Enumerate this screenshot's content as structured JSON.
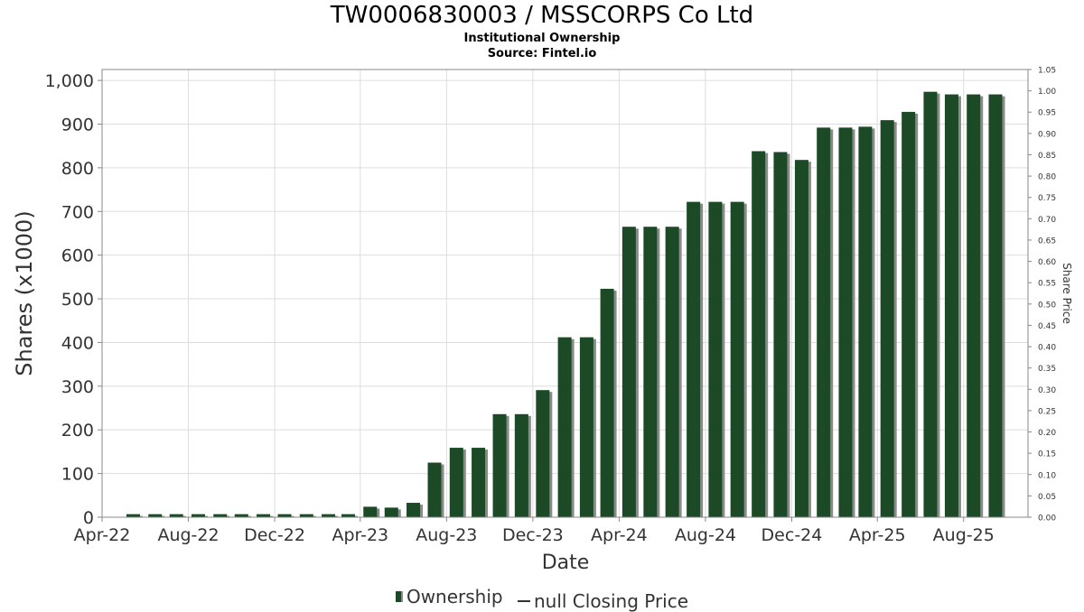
{
  "title": "TW0006830003 / MSSCORPS Co Ltd",
  "subtitle": "Institutional Ownership",
  "source": "Source: Fintel.io",
  "legend": {
    "ownership": "Ownership",
    "price": "null Closing Price"
  },
  "colors": {
    "bar": "#1c4a26",
    "bar_shadow": "#8a8a8a",
    "grid": "#dddddd"
  },
  "chart_data": {
    "type": "bar",
    "title": "TW0006830003 / MSSCORPS Co Ltd",
    "xlabel": "Date",
    "ylabel": "Shares (x1000)",
    "y2label": "Share Price",
    "ylim": [
      0,
      1025
    ],
    "y2lim": [
      0,
      1.05
    ],
    "xlim": [
      "2022-04-01",
      "2025-10-31"
    ],
    "yticks": [
      "0",
      "100",
      "200",
      "300",
      "400",
      "500",
      "600",
      "700",
      "800",
      "900",
      "1,000"
    ],
    "y2ticks": [
      "0.00",
      "0.05",
      "0.10",
      "0.15",
      "0.20",
      "0.25",
      "0.30",
      "0.35",
      "0.40",
      "0.45",
      "0.50",
      "0.55",
      "0.60",
      "0.65",
      "0.70",
      "0.75",
      "0.80",
      "0.85",
      "0.90",
      "0.95",
      "1.00",
      "1.05"
    ],
    "xticks": [
      {
        "label": "Apr-22",
        "date": "2022-04-01"
      },
      {
        "label": "Aug-22",
        "date": "2022-08-01"
      },
      {
        "label": "Dec-22",
        "date": "2022-12-01"
      },
      {
        "label": "Apr-23",
        "date": "2023-04-01"
      },
      {
        "label": "Aug-23",
        "date": "2023-08-01"
      },
      {
        "label": "Dec-23",
        "date": "2023-12-01"
      },
      {
        "label": "Apr-24",
        "date": "2024-04-01"
      },
      {
        "label": "Aug-24",
        "date": "2024-08-01"
      },
      {
        "label": "Dec-24",
        "date": "2024-12-01"
      },
      {
        "label": "Apr-25",
        "date": "2025-04-01"
      },
      {
        "label": "Aug-25",
        "date": "2025-08-01"
      }
    ],
    "grid": true,
    "legend_position": "bottom",
    "series": [
      {
        "name": "Ownership",
        "points": [
          {
            "date": "2022-05-15",
            "value": 7
          },
          {
            "date": "2022-06-15",
            "value": 7
          },
          {
            "date": "2022-07-15",
            "value": 7
          },
          {
            "date": "2022-08-15",
            "value": 7
          },
          {
            "date": "2022-09-15",
            "value": 7
          },
          {
            "date": "2022-10-15",
            "value": 7
          },
          {
            "date": "2022-11-15",
            "value": 7
          },
          {
            "date": "2022-12-15",
            "value": 7
          },
          {
            "date": "2023-01-15",
            "value": 7
          },
          {
            "date": "2023-02-15",
            "value": 7
          },
          {
            "date": "2023-03-15",
            "value": 7
          },
          {
            "date": "2023-04-15",
            "value": 24
          },
          {
            "date": "2023-05-15",
            "value": 22
          },
          {
            "date": "2023-06-15",
            "value": 33
          },
          {
            "date": "2023-07-15",
            "value": 125
          },
          {
            "date": "2023-08-15",
            "value": 159
          },
          {
            "date": "2023-09-15",
            "value": 159
          },
          {
            "date": "2023-10-15",
            "value": 236
          },
          {
            "date": "2023-11-15",
            "value": 236
          },
          {
            "date": "2023-12-15",
            "value": 291
          },
          {
            "date": "2024-01-15",
            "value": 412
          },
          {
            "date": "2024-02-15",
            "value": 412
          },
          {
            "date": "2024-03-15",
            "value": 523
          },
          {
            "date": "2024-04-15",
            "value": 665
          },
          {
            "date": "2024-05-15",
            "value": 665
          },
          {
            "date": "2024-06-15",
            "value": 665
          },
          {
            "date": "2024-07-15",
            "value": 722
          },
          {
            "date": "2024-08-15",
            "value": 722
          },
          {
            "date": "2024-09-15",
            "value": 722
          },
          {
            "date": "2024-10-15",
            "value": 838
          },
          {
            "date": "2024-11-15",
            "value": 836
          },
          {
            "date": "2024-12-15",
            "value": 818
          },
          {
            "date": "2025-01-15",
            "value": 892
          },
          {
            "date": "2025-02-15",
            "value": 892
          },
          {
            "date": "2025-03-15",
            "value": 894
          },
          {
            "date": "2025-04-15",
            "value": 909
          },
          {
            "date": "2025-05-15",
            "value": 928
          },
          {
            "date": "2025-06-15",
            "value": 974
          },
          {
            "date": "2025-07-15",
            "value": 968
          },
          {
            "date": "2025-08-15",
            "value": 968
          },
          {
            "date": "2025-09-15",
            "value": 968
          }
        ]
      }
    ]
  }
}
